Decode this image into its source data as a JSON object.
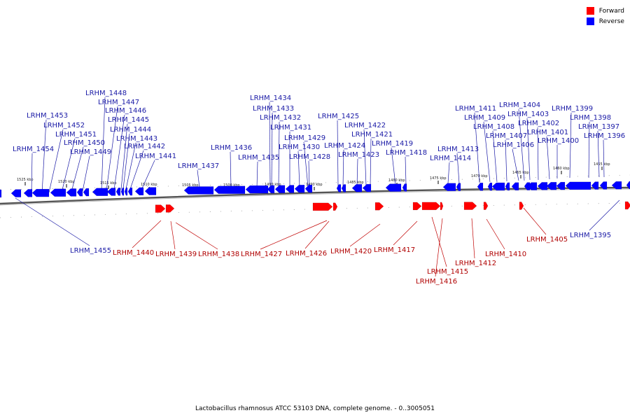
{
  "legend": {
    "forward_label": "Forward",
    "reverse_label": "Reverse",
    "forward_color": "#ff0000",
    "reverse_color": "#0000ff"
  },
  "caption": "Lactobacillus rhamnosus ATCC 53103 DNA, complete genome. - 0..3005051",
  "scale": {
    "ticks": [
      "1525 kbp",
      "1520 kbp",
      "1515 kbp",
      "1510 kbp",
      "1505 kbp",
      "1500 kbp",
      "1495 kbp",
      "1490 kbp",
      "1485 kbp",
      "1480 kbp",
      "1475 kbp",
      "1470 kbp",
      "1465 kbp",
      "1460 kbp",
      "1455 kbp"
    ]
  },
  "genes": {
    "reverse": [
      "LRHM_1455",
      "LRHM_1454",
      "LRHM_1453",
      "LRHM_1452",
      "LRHM_1451",
      "LRHM_1450",
      "LRHM_1449",
      "LRHM_1448",
      "LRHM_1447",
      "LRHM_1446",
      "LRHM_1445",
      "LRHM_1444",
      "LRHM_1443",
      "LRHM_1442",
      "LRHM_1441",
      "LRHM_1437",
      "LRHM_1436",
      "LRHM_1435",
      "LRHM_1434",
      "LRHM_1433",
      "LRHM_1432",
      "LRHM_1431",
      "LRHM_1430",
      "LRHM_1429",
      "LRHM_1428",
      "LRHM_1425",
      "LRHM_1424",
      "LRHM_1423",
      "LRHM_1422",
      "LRHM_1421",
      "LRHM_1419",
      "LRHM_1418",
      "LRHM_1414",
      "LRHM_1413",
      "LRHM_1411",
      "LRHM_1409",
      "LRHM_1408",
      "LRHM_1407",
      "LRHM_1406",
      "LRHM_1404",
      "LRHM_1403",
      "LRHM_1402",
      "LRHM_1401",
      "LRHM_1400",
      "LRHM_1399",
      "LRHM_1398",
      "LRHM_1397",
      "LRHM_1396",
      "LRHM_1395"
    ],
    "forward": [
      "LRHM_1440",
      "LRHM_1439",
      "LRHM_1438",
      "LRHM_1427",
      "LRHM_1426",
      "LRHM_1420",
      "LRHM_1417",
      "LRHM_1415",
      "LRHM_1416",
      "LRHM_1412",
      "LRHM_1410",
      "LRHM_1405"
    ]
  }
}
